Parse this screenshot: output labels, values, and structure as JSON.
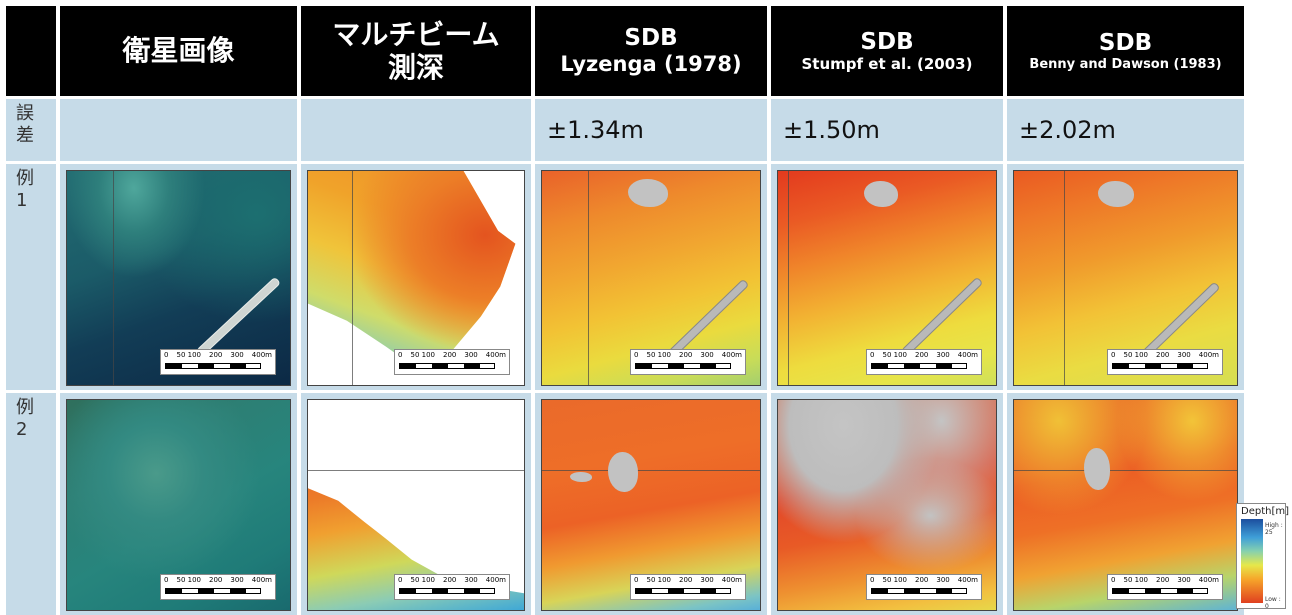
{
  "headers": {
    "sat": "衛星画像",
    "mb_line1": "マルチビーム",
    "mb_line2": "測深",
    "c3_line1": "SDB",
    "c3_line2": "Lyzenga (1978)",
    "c4_line1": "SDB",
    "c4_line2": "Stumpf et al. (2003)",
    "c5_line1": "SDB",
    "c5_line2": "Benny and Dawson (1983)"
  },
  "rows": {
    "error": {
      "label_1": "誤",
      "label_2": "差"
    },
    "ex1": {
      "label_1": "例",
      "label_2": "1"
    },
    "ex2": {
      "label_1": "例",
      "label_2": "2"
    }
  },
  "errors": {
    "lyzenga": "±1.34m",
    "stumpf": "±1.50m",
    "benny": "±2.02m"
  },
  "scalebar": {
    "t0": "0",
    "t1": "50 100",
    "t2": "200",
    "t3": "300",
    "t4": "400m"
  },
  "legend": {
    "title": "Depth[m]",
    "high": "High : 25",
    "low": "Low : 0"
  },
  "colors": {
    "header_bg": "#000000",
    "cell_bg": "#c6dbe8",
    "shallow": "#e04020",
    "deep": "#1c4e9e",
    "land_mask": "#c2c2c2"
  }
}
